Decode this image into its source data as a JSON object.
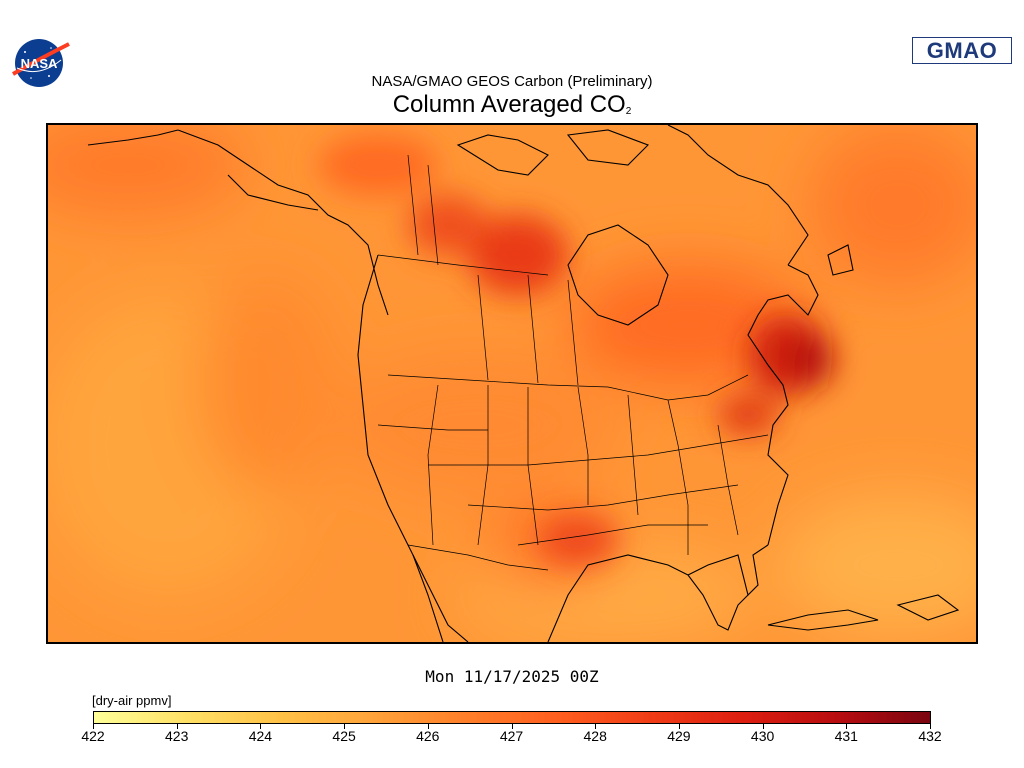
{
  "header": {
    "subtitle": "NASA/GMAO GEOS Carbon (Preliminary)",
    "title_main": "Column Averaged CO",
    "title_sub": "2",
    "logo_left_text": "NASA",
    "logo_right_text": "GMAO"
  },
  "map": {
    "projection": "polar-stereographic-like North America view",
    "field": "Column averaged CO2",
    "boundaries": [
      "continent-coastlines",
      "country-borders",
      "state-province-borders"
    ],
    "high_concentration_regions": [
      "northeast-US-coast",
      "hudson-bay-area",
      "southern-plains"
    ],
    "low_concentration_regions": [
      "eastern-pacific",
      "caribbean"
    ]
  },
  "timestamp": "Mon 11/17/2025 00Z",
  "colorbar": {
    "units": "[dry-air ppmv]",
    "min": 422,
    "max": 432,
    "ticks": [
      "422",
      "423",
      "424",
      "425",
      "426",
      "427",
      "428",
      "429",
      "430",
      "431",
      "432"
    ],
    "colors": [
      "#ffff99",
      "#ffe066",
      "#ffc247",
      "#ffa33a",
      "#ff7f2a",
      "#ff5e1f",
      "#f03c16",
      "#dc1e10",
      "#b80d10",
      "#7a0510"
    ]
  }
}
